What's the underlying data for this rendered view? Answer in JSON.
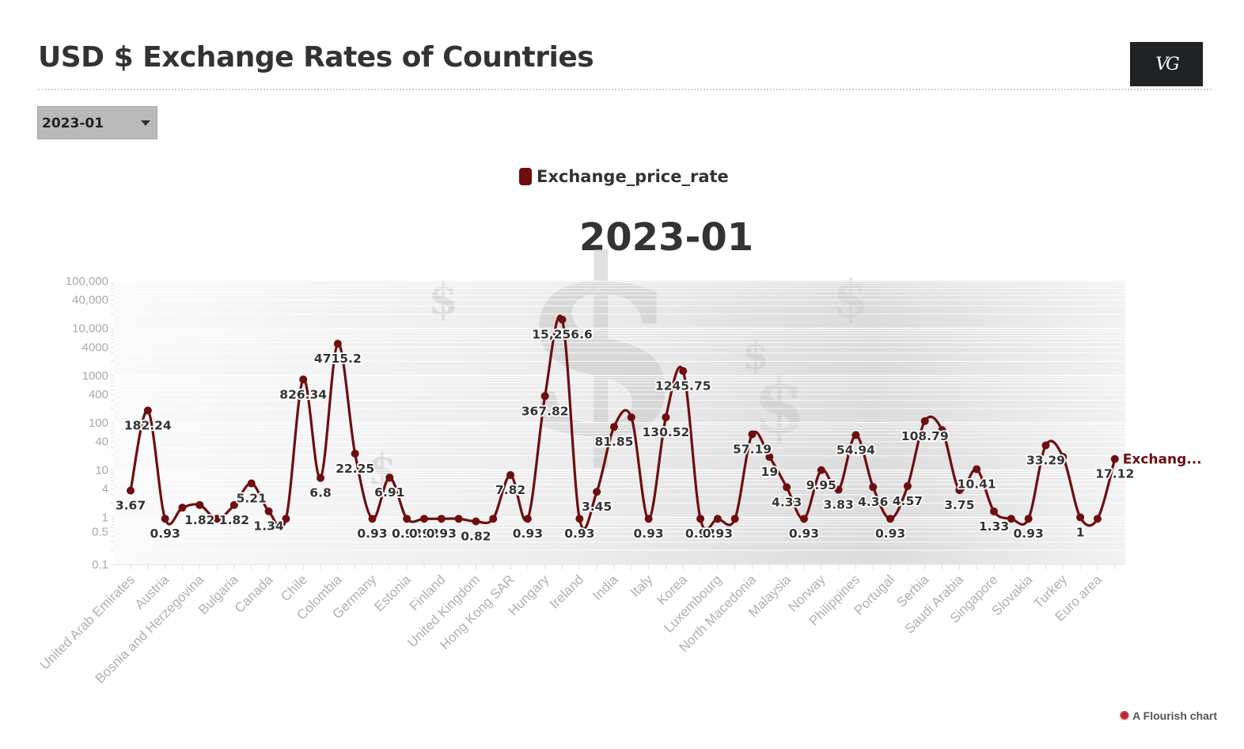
{
  "header": {
    "title": "USD $ Exchange Rates of Countries",
    "logo_text": "VG"
  },
  "selector": {
    "value": "2023-01",
    "icon": "chevron-down-icon"
  },
  "legend": {
    "label": "Exchange_price_rate",
    "color": "#6e0e0e"
  },
  "chart_title": "2023-01",
  "credit": {
    "label": "A Flourish chart",
    "icon": "flourish-icon"
  },
  "chart_data": {
    "type": "line",
    "title": "2023-01",
    "xlabel": "",
    "ylabel": "",
    "y_scale": "log",
    "ylim": [
      0.1,
      100000
    ],
    "y_ticks": [
      "100,000",
      "40,000",
      "10,000",
      "4000",
      "1000",
      "400",
      "100",
      "40",
      "10",
      "4",
      "1",
      "0.5",
      "0.1"
    ],
    "legend_position": "top-center",
    "line_color": "#6e0e0e",
    "end_label": "Exchang...",
    "categories": [
      "United Arab Emirates",
      "",
      "Austria",
      "",
      "Bosnia and Herzegovina",
      "",
      "Bulgaria",
      "",
      "Canada",
      "",
      "Chile",
      "",
      "Colombia",
      "",
      "Germany",
      "",
      "Estonia",
      "",
      "Finland",
      "",
      "United Kingdom",
      "",
      "Hong Kong SAR",
      "",
      "Hungary",
      "",
      "Ireland",
      "",
      "India",
      "",
      "Italy",
      "",
      "Korea",
      "",
      "Luxembourg",
      "",
      "North Macedonia",
      "",
      "Malaysia",
      "",
      "Norway",
      "",
      "Philippines",
      "",
      "Portugal",
      "",
      "Serbia",
      "",
      "Saudi Arabia",
      "",
      "Singapore",
      "",
      "Slovakia",
      "",
      "Turkey",
      "",
      "Euro area",
      ""
    ],
    "series": [
      {
        "name": "Exchange_price_rate",
        "values": [
          3.67,
          182.24,
          0.93,
          1.6,
          1.82,
          0.93,
          1.82,
          5.21,
          1.34,
          0.93,
          826.34,
          6.8,
          4715.2,
          22.25,
          0.93,
          6.91,
          0.93,
          0.93,
          0.93,
          0.93,
          0.82,
          0.93,
          7.82,
          0.93,
          367.82,
          15256.6,
          0.93,
          3.45,
          81.85,
          130.52,
          0.93,
          130.52,
          1245.75,
          0.93,
          0.93,
          0.93,
          57.19,
          19,
          4.33,
          0.93,
          9.95,
          3.83,
          54.94,
          4.36,
          0.93,
          4.57,
          108.79,
          70,
          3.75,
          10.41,
          1.33,
          0.93,
          0.93,
          33.29,
          19,
          1,
          0.93,
          17.12
        ],
        "labels": [
          "3.67",
          "182.24",
          "0.93",
          "",
          "1.82",
          "",
          "1.82",
          "5.21",
          "1.34",
          "",
          "826.34",
          "6.8",
          "4715.2",
          "22.25",
          "0.93",
          "6.91",
          "0.93",
          "0.93",
          "0.93",
          "",
          "0.82",
          "",
          "7.82",
          "0.93",
          "367.82",
          "15,256.6",
          "0.93",
          "3.45",
          "81.85",
          "",
          "0.93",
          "130.52",
          "1245.75",
          "0.93",
          "0.93",
          "",
          "57.19",
          "19",
          "4.33",
          "0.93",
          "9.95",
          "3.83",
          "54.94",
          "4.36",
          "0.93",
          "4.57",
          "108.79",
          "",
          "3.75",
          "10.41",
          "1.33",
          "",
          "0.93",
          "33.29",
          "",
          "1",
          "",
          "17.12"
        ]
      }
    ]
  }
}
